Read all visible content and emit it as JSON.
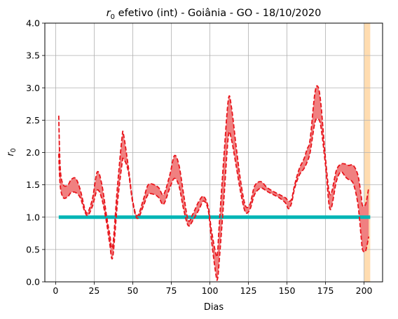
{
  "chart_data": {
    "type": "line",
    "title_prefix": "r",
    "title_subscript": "0",
    "title_rest": " efetivo (int) - Goiânia - GO - 18/10/2020",
    "xlabel": "Dias",
    "ylabel_main": "r",
    "ylabel_sub": "0",
    "xlim": [
      -7,
      212
    ],
    "ylim": [
      0,
      4
    ],
    "x_ticks": [
      0,
      25,
      50,
      75,
      100,
      125,
      150,
      175,
      200
    ],
    "y_ticks": [
      0.0,
      0.5,
      1.0,
      1.5,
      2.0,
      2.5,
      3.0,
      3.5,
      4.0
    ],
    "x_tick_labels": [
      "0",
      "25",
      "50",
      "75",
      "100",
      "125",
      "150",
      "175",
      "200"
    ],
    "y_tick_labels": [
      "0.0",
      "0.5",
      "1.0",
      "1.5",
      "2.0",
      "2.5",
      "3.0",
      "3.5",
      "4.0"
    ],
    "grid": true,
    "highlight_span": {
      "x0": 200,
      "x1": 204,
      "color": "#ffdcb0"
    },
    "reference_line": {
      "y": 1.0,
      "x0": 2,
      "x1": 204,
      "color": "#00b5b5"
    },
    "band_color": "#f08080",
    "line_color": "#e8141b",
    "upper": {
      "x": [
        2,
        3,
        5,
        8,
        10,
        13,
        16,
        19,
        21,
        24,
        27,
        30,
        33,
        35,
        37,
        40,
        43,
        44,
        47,
        50,
        53,
        57,
        60,
        64,
        67,
        70,
        74,
        77,
        80,
        83,
        86,
        89,
        93,
        96,
        99,
        101,
        104,
        105,
        106,
        109,
        112,
        114,
        117,
        120,
        123,
        126,
        129,
        133,
        137,
        141,
        145,
        149,
        151,
        153,
        155,
        158,
        161,
        163,
        165,
        168,
        170,
        172,
        175,
        178,
        182,
        185,
        188,
        190,
        193,
        196,
        198,
        199,
        201,
        203
      ],
      "y": [
        2.57,
        1.75,
        1.5,
        1.5,
        1.58,
        1.6,
        1.42,
        1.12,
        1.08,
        1.3,
        1.7,
        1.5,
        1.02,
        0.75,
        0.55,
        1.45,
        2.22,
        2.28,
        1.8,
        1.25,
        1.02,
        1.28,
        1.5,
        1.5,
        1.45,
        1.35,
        1.65,
        1.95,
        1.8,
        1.35,
        0.95,
        1.05,
        1.25,
        1.32,
        1.15,
        0.8,
        0.42,
        0.45,
        0.85,
        1.9,
        2.82,
        2.7,
        2.1,
        1.55,
        1.18,
        1.2,
        1.48,
        1.55,
        1.46,
        1.4,
        1.35,
        1.3,
        1.25,
        1.28,
        1.5,
        1.75,
        1.9,
        2.05,
        2.2,
        2.9,
        3.02,
        2.75,
        1.9,
        1.35,
        1.72,
        1.82,
        1.82,
        1.8,
        1.8,
        1.65,
        1.35,
        1.18,
        1.2,
        1.45
      ]
    },
    "lower": {
      "x": [
        2,
        3,
        5,
        8,
        10,
        13,
        16,
        19,
        21,
        24,
        27,
        30,
        33,
        35,
        37,
        40,
        43,
        44,
        47,
        50,
        53,
        57,
        60,
        64,
        67,
        70,
        74,
        77,
        80,
        83,
        86,
        89,
        93,
        96,
        99,
        101,
        104,
        105,
        106,
        109,
        112,
        114,
        117,
        120,
        123,
        126,
        129,
        133,
        137,
        141,
        145,
        149,
        151,
        153,
        155,
        158,
        161,
        163,
        165,
        168,
        170,
        172,
        175,
        178,
        182,
        185,
        188,
        190,
        193,
        196,
        198,
        199,
        201,
        203
      ],
      "y": [
        1.98,
        1.48,
        1.3,
        1.32,
        1.38,
        1.38,
        1.3,
        1.08,
        1.03,
        1.18,
        1.42,
        1.28,
        0.92,
        0.6,
        0.38,
        1.2,
        1.82,
        1.9,
        1.72,
        1.22,
        0.98,
        1.18,
        1.35,
        1.35,
        1.3,
        1.2,
        1.45,
        1.6,
        1.48,
        1.12,
        0.87,
        0.95,
        1.12,
        1.25,
        1.1,
        0.65,
        0.1,
        0.05,
        0.3,
        1.25,
        2.25,
        2.2,
        1.8,
        1.38,
        1.08,
        1.12,
        1.35,
        1.45,
        1.4,
        1.35,
        1.3,
        1.22,
        1.13,
        1.22,
        1.45,
        1.65,
        1.75,
        1.85,
        2.0,
        2.45,
        2.52,
        2.4,
        1.8,
        1.12,
        1.55,
        1.7,
        1.62,
        1.58,
        1.52,
        1.2,
        0.72,
        0.5,
        0.48,
        0.7
      ]
    }
  }
}
